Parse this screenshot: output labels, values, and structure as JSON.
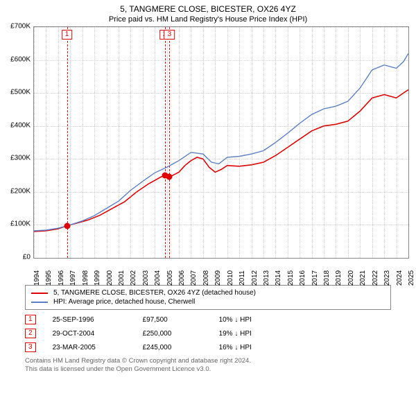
{
  "title": "5, TANGMERE CLOSE, BICESTER, OX26 4YZ",
  "subtitle": "Price paid vs. HM Land Registry's House Price Index (HPI)",
  "chart": {
    "type": "line",
    "background_color": "#ffffff",
    "grid_color": "#b0b0b0",
    "border_color": "#888888",
    "x": {
      "min": 1994,
      "max": 2025,
      "tick_step": 1,
      "label_fontsize": 10
    },
    "y": {
      "min": 0,
      "max": 700000,
      "tick_step": 100000,
      "tick_labels": [
        "£0",
        "£100K",
        "£200K",
        "£300K",
        "£400K",
        "£500K",
        "£600K",
        "£700K"
      ],
      "label_fontsize": 10
    },
    "series": [
      {
        "name": "price_paid",
        "label": "5, TANGMERE CLOSE, BICESTER, OX26 4YZ (detached house)",
        "color": "#e00000",
        "line_width": 1.6,
        "xy": [
          [
            1994.0,
            80000
          ],
          [
            1995.0,
            82000
          ],
          [
            1996.0,
            88000
          ],
          [
            1996.73,
            97500
          ],
          [
            1997.5,
            105000
          ],
          [
            1998.5,
            115000
          ],
          [
            1999.5,
            130000
          ],
          [
            2000.5,
            150000
          ],
          [
            2001.5,
            170000
          ],
          [
            2002.5,
            200000
          ],
          [
            2003.5,
            225000
          ],
          [
            2004.5,
            245000
          ],
          [
            2004.83,
            250000
          ],
          [
            2005.22,
            245000
          ],
          [
            2006.0,
            260000
          ],
          [
            2006.5,
            280000
          ],
          [
            2007.0,
            295000
          ],
          [
            2007.5,
            305000
          ],
          [
            2008.0,
            300000
          ],
          [
            2008.5,
            275000
          ],
          [
            2009.0,
            260000
          ],
          [
            2009.5,
            268000
          ],
          [
            2010.0,
            280000
          ],
          [
            2011.0,
            278000
          ],
          [
            2012.0,
            282000
          ],
          [
            2013.0,
            290000
          ],
          [
            2014.0,
            310000
          ],
          [
            2015.0,
            335000
          ],
          [
            2016.0,
            360000
          ],
          [
            2017.0,
            385000
          ],
          [
            2018.0,
            400000
          ],
          [
            2019.0,
            405000
          ],
          [
            2020.0,
            415000
          ],
          [
            2021.0,
            445000
          ],
          [
            2022.0,
            485000
          ],
          [
            2023.0,
            495000
          ],
          [
            2024.0,
            485000
          ],
          [
            2024.6,
            500000
          ],
          [
            2025.0,
            510000
          ]
        ]
      },
      {
        "name": "hpi",
        "label": "HPI: Average price, detached house, Cherwell",
        "color": "#5b7fc7",
        "line_width": 1.4,
        "xy": [
          [
            1994.0,
            82000
          ],
          [
            1995.0,
            84000
          ],
          [
            1996.0,
            90000
          ],
          [
            1997.0,
            100000
          ],
          [
            1998.0,
            112000
          ],
          [
            1999.0,
            128000
          ],
          [
            2000.0,
            150000
          ],
          [
            2001.0,
            172000
          ],
          [
            2002.0,
            205000
          ],
          [
            2003.0,
            232000
          ],
          [
            2004.0,
            258000
          ],
          [
            2005.0,
            275000
          ],
          [
            2006.0,
            295000
          ],
          [
            2007.0,
            320000
          ],
          [
            2008.0,
            315000
          ],
          [
            2008.7,
            290000
          ],
          [
            2009.3,
            285000
          ],
          [
            2010.0,
            305000
          ],
          [
            2011.0,
            308000
          ],
          [
            2012.0,
            315000
          ],
          [
            2013.0,
            325000
          ],
          [
            2014.0,
            350000
          ],
          [
            2015.0,
            378000
          ],
          [
            2016.0,
            408000
          ],
          [
            2017.0,
            435000
          ],
          [
            2018.0,
            452000
          ],
          [
            2019.0,
            460000
          ],
          [
            2020.0,
            475000
          ],
          [
            2021.0,
            515000
          ],
          [
            2022.0,
            570000
          ],
          [
            2023.0,
            585000
          ],
          [
            2024.0,
            575000
          ],
          [
            2024.6,
            595000
          ],
          [
            2025.0,
            620000
          ]
        ]
      }
    ],
    "markers": [
      {
        "id": "1",
        "x": 1996.73,
        "y": 97500
      },
      {
        "id": "2",
        "x": 2004.83,
        "y": 250000
      },
      {
        "id": "3",
        "x": 2005.22,
        "y": 245000
      }
    ],
    "marker_badge_color": "#e00000",
    "marker_line_color": "#e11"
  },
  "legend": {
    "items": [
      {
        "color": "#e00000",
        "label": "5, TANGMERE CLOSE, BICESTER, OX26 4YZ (detached house)"
      },
      {
        "color": "#5b7fc7",
        "label": "HPI: Average price, detached house, Cherwell"
      }
    ]
  },
  "sales": [
    {
      "id": "1",
      "date": "25-SEP-1996",
      "price": "£97,500",
      "diff": "10% ↓ HPI"
    },
    {
      "id": "2",
      "date": "29-OCT-2004",
      "price": "£250,000",
      "diff": "19% ↓ HPI"
    },
    {
      "id": "3",
      "date": "23-MAR-2005",
      "price": "£245,000",
      "diff": "16% ↓ HPI"
    }
  ],
  "footnote_line1": "Contains HM Land Registry data © Crown copyright and database right 2024.",
  "footnote_line2": "This data is licensed under the Open Government Licence v3.0."
}
